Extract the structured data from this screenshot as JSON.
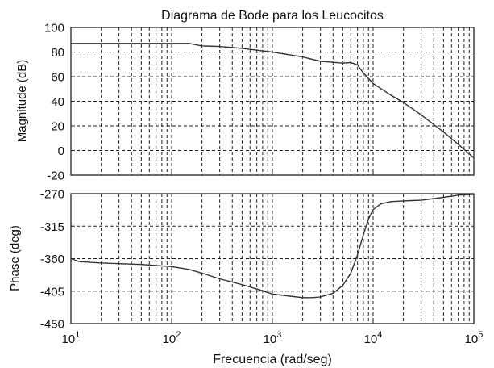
{
  "chart_data": {
    "title": "Diagrama de Bode para los Leucocitos",
    "xlabel": "Frecuencia (rad/seg)",
    "x_scale": "log",
    "xlim": [
      10,
      100000
    ],
    "x_ticks": [
      {
        "value": 10,
        "base": "10",
        "exp": "1"
      },
      {
        "value": 100,
        "base": "10",
        "exp": "2"
      },
      {
        "value": 1000,
        "base": "10",
        "exp": "3"
      },
      {
        "value": 10000,
        "base": "10",
        "exp": "4"
      },
      {
        "value": 100000,
        "base": "10",
        "exp": "5"
      }
    ],
    "grid": true,
    "panels": [
      {
        "type": "line",
        "ylabel": "Magnitude (dB)",
        "ylim": [
          -20,
          100
        ],
        "y_ticks": [
          -20,
          0,
          20,
          40,
          60,
          80,
          100
        ],
        "x": [
          10,
          100,
          150,
          200,
          300,
          500,
          1000,
          2000,
          3000,
          5000,
          6000,
          7000,
          8000,
          10000,
          15000,
          20000,
          30000,
          50000,
          70000,
          100000
        ],
        "values": [
          87,
          87,
          87,
          85,
          84.5,
          83,
          80,
          76,
          72.5,
          71,
          71.5,
          69.5,
          63,
          54.5,
          45,
          39,
          29,
          15,
          5,
          -6
        ]
      },
      {
        "type": "line",
        "ylabel": "Phase (deg)",
        "ylim": [
          -450,
          -270
        ],
        "y_ticks": [
          -450,
          -405,
          -360,
          -315,
          -270
        ],
        "x": [
          10,
          12,
          20,
          50,
          100,
          150,
          200,
          300,
          500,
          700,
          1000,
          1500,
          2000,
          2500,
          3000,
          4000,
          5000,
          6000,
          7000,
          8000,
          9000,
          10000,
          12000,
          15000,
          20000,
          30000,
          50000,
          70000,
          100000
        ],
        "values": [
          -360,
          -364,
          -366,
          -368,
          -371,
          -375,
          -380,
          -388,
          -396,
          -402,
          -409,
          -412,
          -414,
          -414,
          -413,
          -408,
          -397,
          -380,
          -355,
          -327,
          -305,
          -292,
          -284,
          -281,
          -280,
          -279,
          -275,
          -272,
          -271
        ]
      }
    ]
  }
}
